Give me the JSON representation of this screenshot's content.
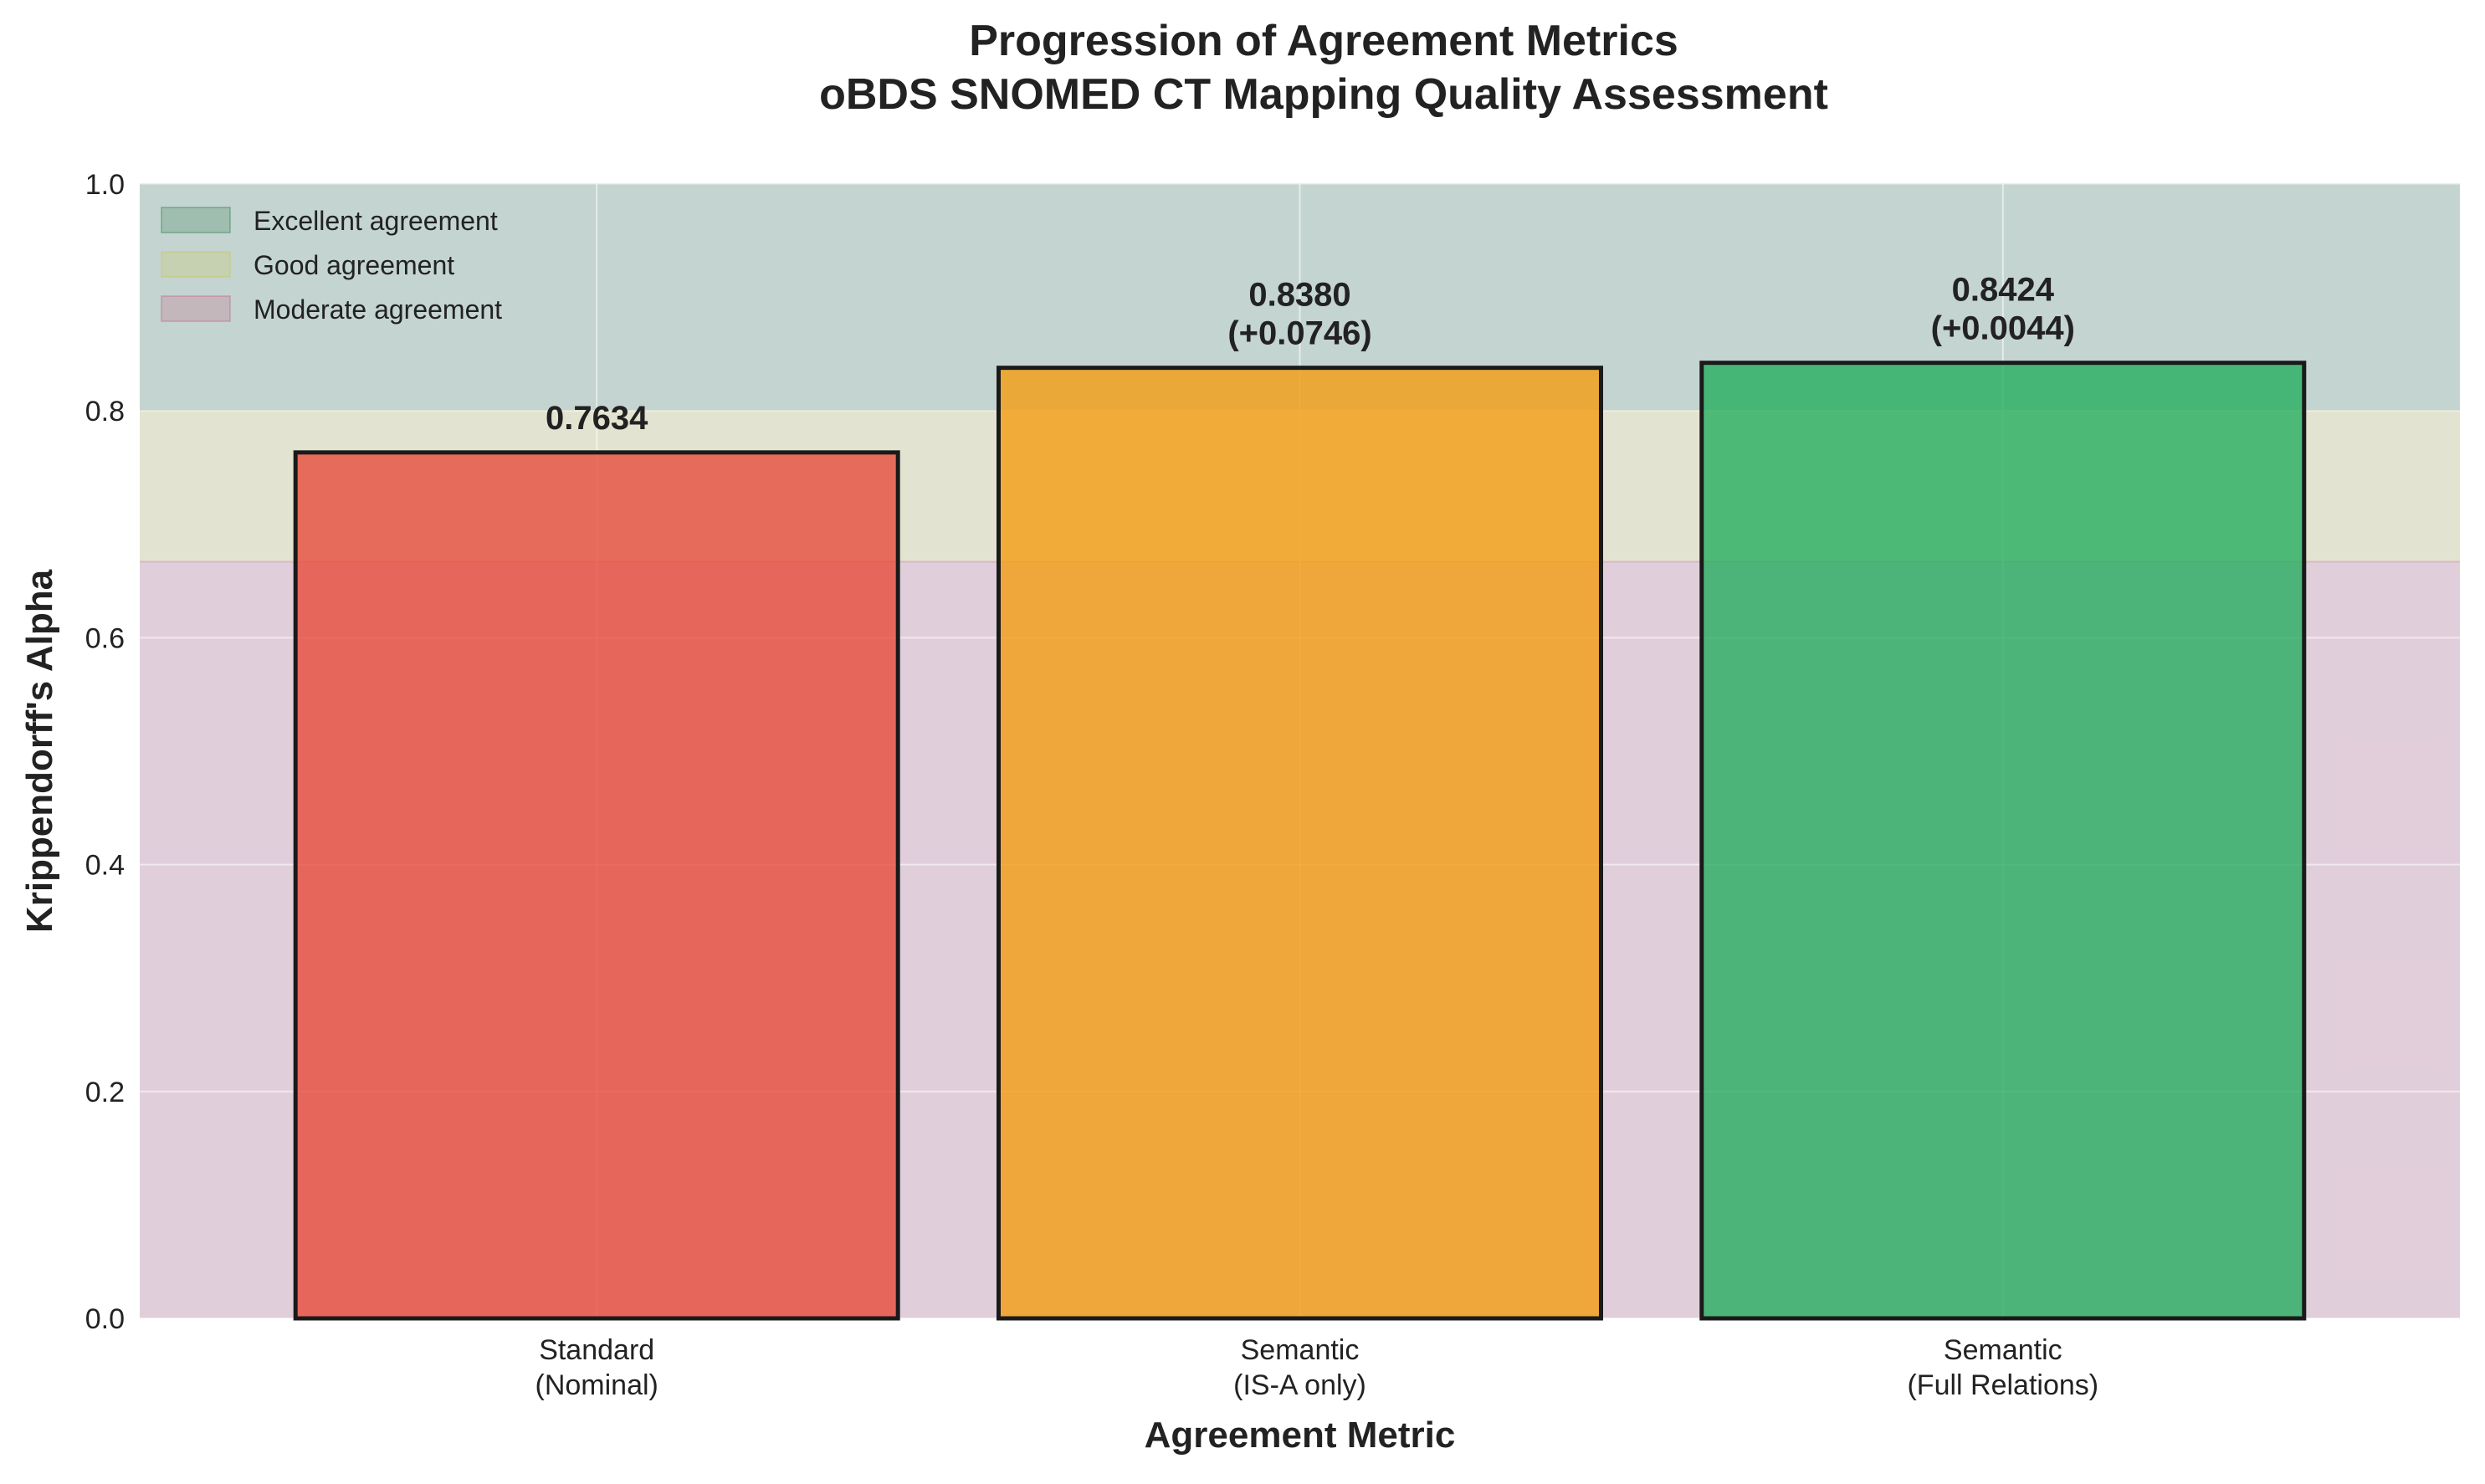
{
  "chart_data": {
    "type": "bar",
    "title": [
      "Progression of Agreement Metrics",
      "oBDS SNOMED CT Mapping Quality Assessment"
    ],
    "xlabel": "Agreement Metric",
    "ylabel": "Krippendorff's Alpha",
    "ylim": [
      0,
      1.0
    ],
    "yticks": [
      "0.0",
      "0.2",
      "0.4",
      "0.6",
      "0.8",
      "1.0"
    ],
    "grid": true,
    "categories": [
      [
        "Standard",
        "(Nominal)"
      ],
      [
        "Semantic",
        "(IS-A only)"
      ],
      [
        "Semantic",
        "(Full Relations)"
      ]
    ],
    "values": [
      0.7634,
      0.838,
      0.8424
    ],
    "value_labels": [
      [
        "0.7634"
      ],
      [
        "0.8380",
        "(+0.0746)"
      ],
      [
        "0.8424",
        "(+0.0044)"
      ]
    ],
    "bar_colors": [
      "#e74c3c",
      "#f39c12",
      "#27ae60"
    ],
    "bands": [
      {
        "label": "Excellent agreement",
        "from": 0.8,
        "to": 1.0,
        "color": "#2e7d4f"
      },
      {
        "label": "Good agreement",
        "from": 0.667,
        "to": 0.8,
        "color": "#c8c850"
      },
      {
        "label": "Moderate agreement",
        "from": 0.0,
        "to": 0.667,
        "color": "#c06080"
      }
    ],
    "legend_position": "top-left"
  }
}
